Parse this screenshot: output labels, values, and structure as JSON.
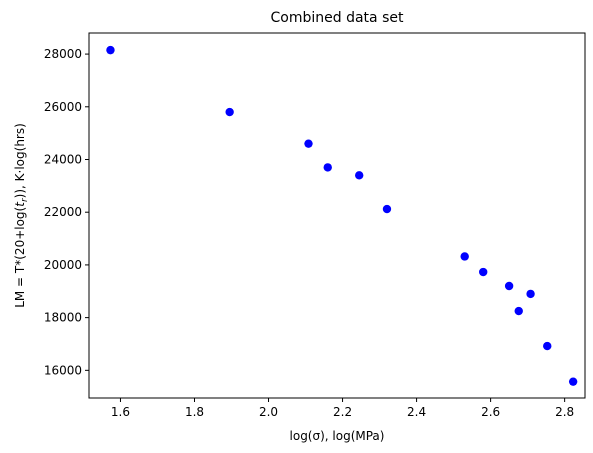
{
  "chart_data": {
    "type": "scatter",
    "title": "Combined data set",
    "xlabel": "log(σ), log(MPa)",
    "ylabel_parts": [
      "LM = T*(20+log(",
      "t",
      "r",
      ")), K·log(hrs)"
    ],
    "xlim": [
      1.515,
      2.855
    ],
    "ylim": [
      14950,
      28800
    ],
    "xticks": [
      1.6,
      1.8,
      2.0,
      2.2,
      2.4,
      2.6,
      2.8
    ],
    "xtick_labels": [
      "1.6",
      "1.8",
      "2.0",
      "2.2",
      "2.4",
      "2.6",
      "2.8"
    ],
    "yticks": [
      16000,
      18000,
      20000,
      22000,
      24000,
      26000,
      28000
    ],
    "ytick_labels": [
      "16000",
      "18000",
      "20000",
      "22000",
      "24000",
      "26000",
      "28000"
    ],
    "marker_color": "#0000ff",
    "grid": false,
    "points": [
      {
        "x": 1.573,
        "y": 28150
      },
      {
        "x": 1.895,
        "y": 25800
      },
      {
        "x": 2.108,
        "y": 24600
      },
      {
        "x": 2.16,
        "y": 23700
      },
      {
        "x": 2.245,
        "y": 23400
      },
      {
        "x": 2.32,
        "y": 22120
      },
      {
        "x": 2.53,
        "y": 20320
      },
      {
        "x": 2.58,
        "y": 19730
      },
      {
        "x": 2.65,
        "y": 19200
      },
      {
        "x": 2.676,
        "y": 18250
      },
      {
        "x": 2.708,
        "y": 18900
      },
      {
        "x": 2.753,
        "y": 16920
      },
      {
        "x": 2.823,
        "y": 15570
      }
    ]
  }
}
